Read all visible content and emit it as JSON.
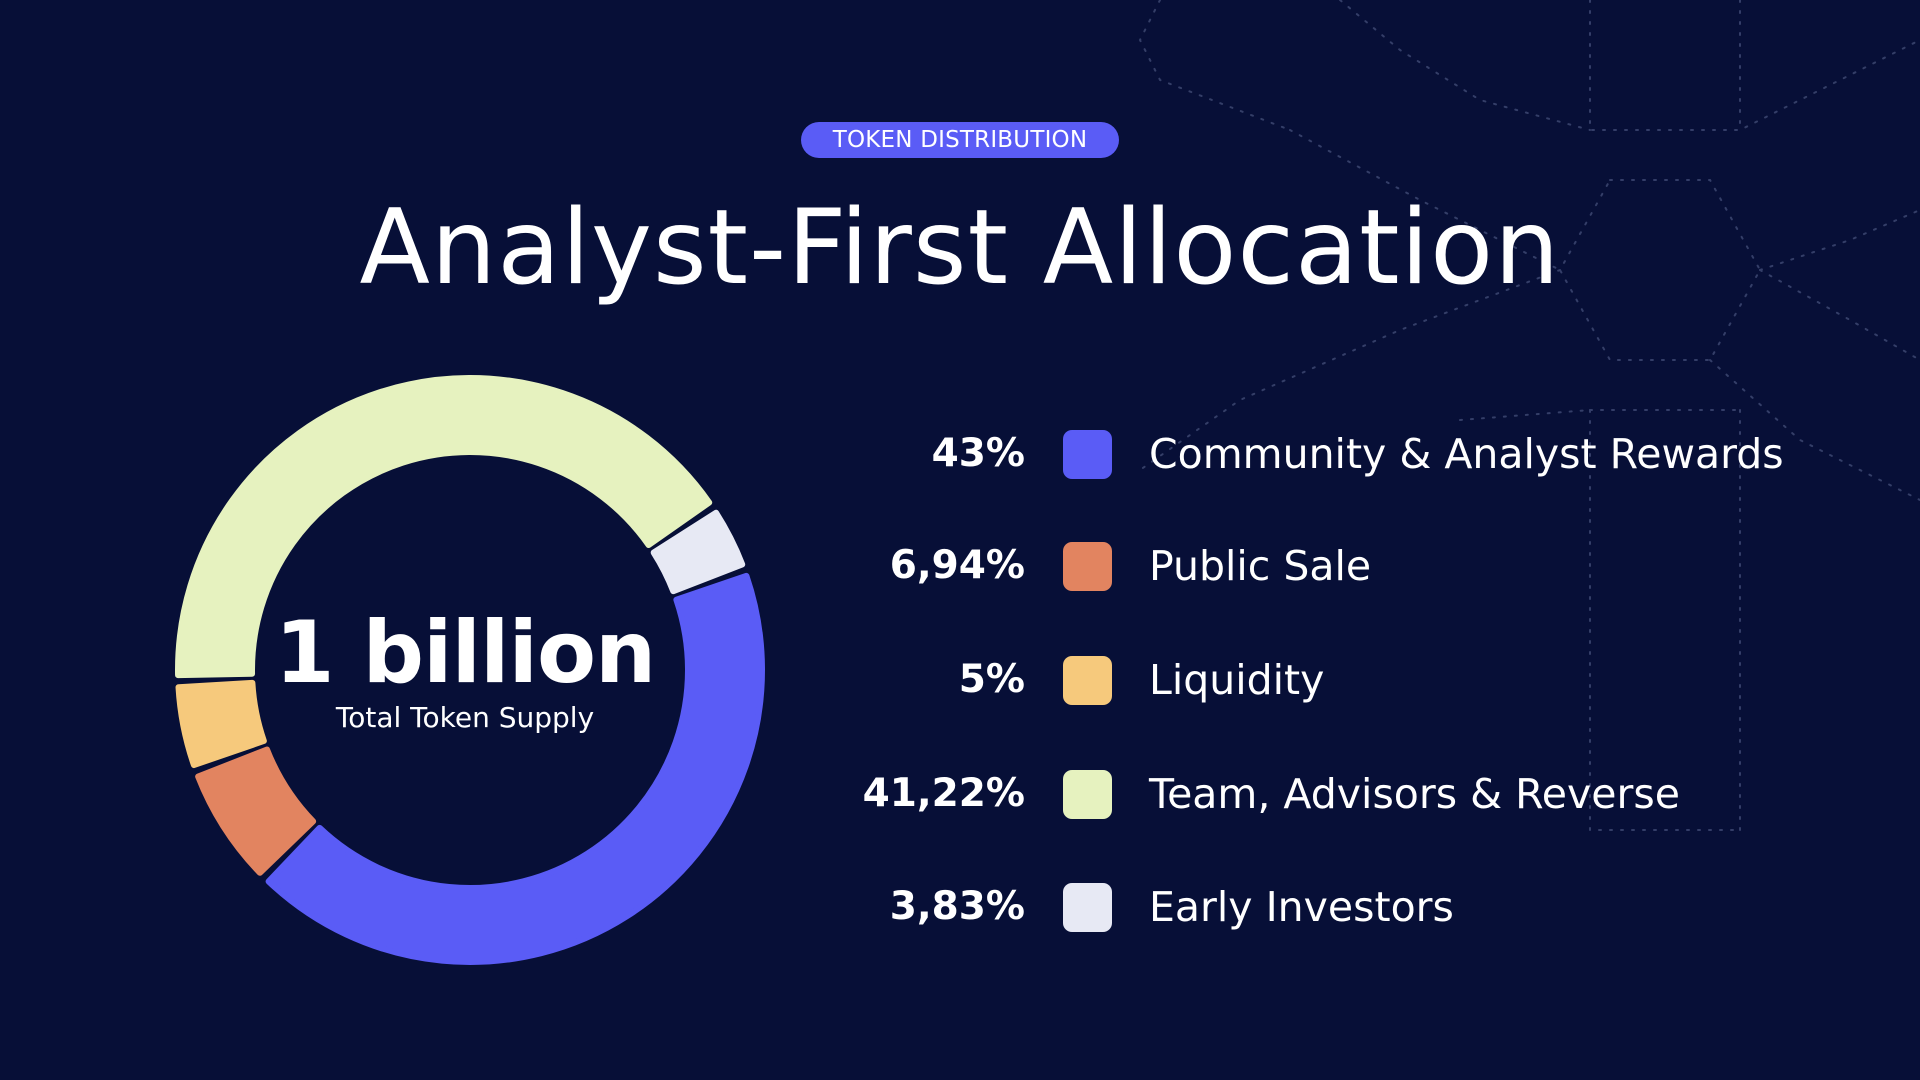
{
  "header": {
    "badge": "TOKEN DISTRIBUTION",
    "title": "Analyst-First Allocation"
  },
  "center": {
    "value": "1 billion",
    "caption": "Total Token Supply"
  },
  "colors": {
    "background": "#070f37",
    "accent": "#5a5cf6",
    "pattern": "#5a6690"
  },
  "chart_data": {
    "type": "pie",
    "style": "donut",
    "title": "Analyst-First Allocation",
    "total_label": "1 billion",
    "total_caption": "Total Token Supply",
    "legend_position": "right",
    "slices": [
      {
        "label": "Community & Analyst Rewards",
        "value": 43,
        "display": "43%",
        "color": "#5a5cf6"
      },
      {
        "label": "Public Sale",
        "value": 6.94,
        "display": "6,94%",
        "color": "#e28460"
      },
      {
        "label": "Liquidity",
        "value": 5,
        "display": "5%",
        "color": "#f6c97c"
      },
      {
        "label": "Team, Advisors & Reverse",
        "value": 41.22,
        "display": "41,22%",
        "color": "#e6f2bf"
      },
      {
        "label": "Early Investors",
        "value": 3.83,
        "display": "3,83%",
        "color": "#e7e9f4"
      }
    ]
  }
}
